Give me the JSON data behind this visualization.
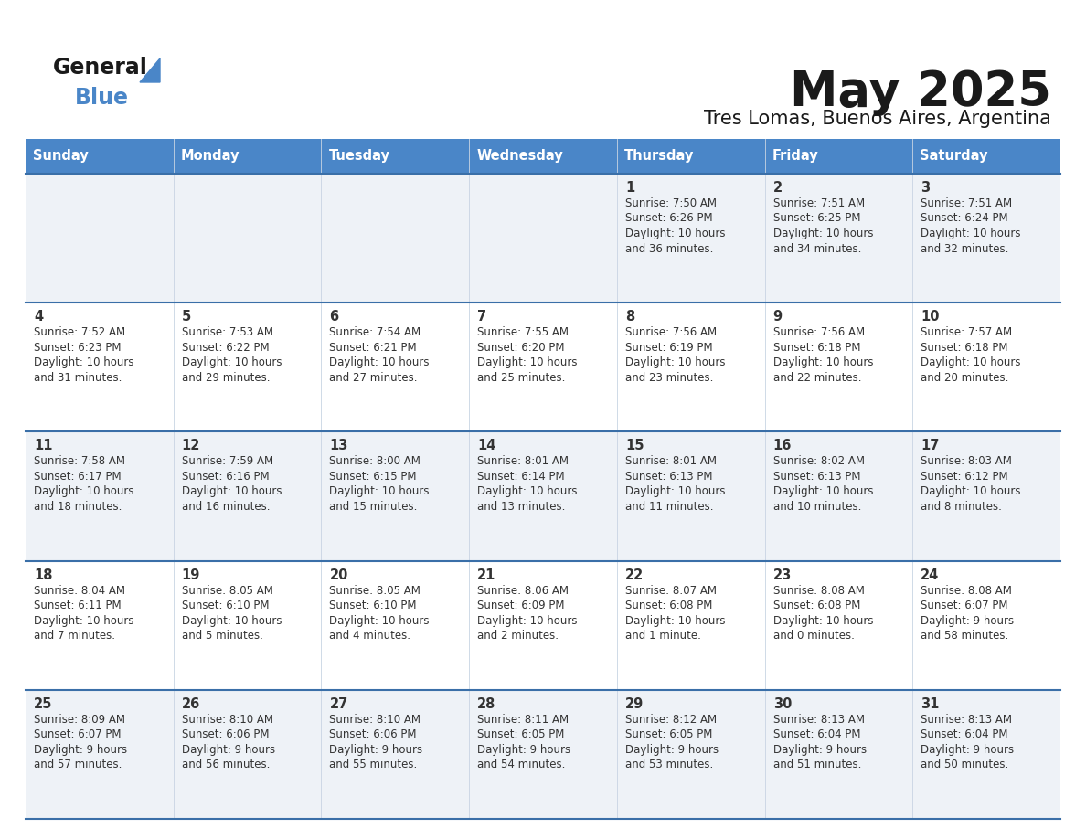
{
  "title": "May 2025",
  "subtitle": "Tres Lomas, Buenos Aires, Argentina",
  "header_bg": "#4a86c8",
  "header_text": "#ffffff",
  "row_bg_light": "#eef2f7",
  "row_bg_white": "#ffffff",
  "separator_color": "#3a6fa8",
  "text_color": "#333333",
  "day_headers": [
    "Sunday",
    "Monday",
    "Tuesday",
    "Wednesday",
    "Thursday",
    "Friday",
    "Saturday"
  ],
  "days": [
    {
      "day": 1,
      "col": 4,
      "row": 0,
      "sunrise": "7:50 AM",
      "sunset": "6:26 PM",
      "daylight_h": "10 hours",
      "daylight_m": "and 36 minutes."
    },
    {
      "day": 2,
      "col": 5,
      "row": 0,
      "sunrise": "7:51 AM",
      "sunset": "6:25 PM",
      "daylight_h": "10 hours",
      "daylight_m": "and 34 minutes."
    },
    {
      "day": 3,
      "col": 6,
      "row": 0,
      "sunrise": "7:51 AM",
      "sunset": "6:24 PM",
      "daylight_h": "10 hours",
      "daylight_m": "and 32 minutes."
    },
    {
      "day": 4,
      "col": 0,
      "row": 1,
      "sunrise": "7:52 AM",
      "sunset": "6:23 PM",
      "daylight_h": "10 hours",
      "daylight_m": "and 31 minutes."
    },
    {
      "day": 5,
      "col": 1,
      "row": 1,
      "sunrise": "7:53 AM",
      "sunset": "6:22 PM",
      "daylight_h": "10 hours",
      "daylight_m": "and 29 minutes."
    },
    {
      "day": 6,
      "col": 2,
      "row": 1,
      "sunrise": "7:54 AM",
      "sunset": "6:21 PM",
      "daylight_h": "10 hours",
      "daylight_m": "and 27 minutes."
    },
    {
      "day": 7,
      "col": 3,
      "row": 1,
      "sunrise": "7:55 AM",
      "sunset": "6:20 PM",
      "daylight_h": "10 hours",
      "daylight_m": "and 25 minutes."
    },
    {
      "day": 8,
      "col": 4,
      "row": 1,
      "sunrise": "7:56 AM",
      "sunset": "6:19 PM",
      "daylight_h": "10 hours",
      "daylight_m": "and 23 minutes."
    },
    {
      "day": 9,
      "col": 5,
      "row": 1,
      "sunrise": "7:56 AM",
      "sunset": "6:18 PM",
      "daylight_h": "10 hours",
      "daylight_m": "and 22 minutes."
    },
    {
      "day": 10,
      "col": 6,
      "row": 1,
      "sunrise": "7:57 AM",
      "sunset": "6:18 PM",
      "daylight_h": "10 hours",
      "daylight_m": "and 20 minutes."
    },
    {
      "day": 11,
      "col": 0,
      "row": 2,
      "sunrise": "7:58 AM",
      "sunset": "6:17 PM",
      "daylight_h": "10 hours",
      "daylight_m": "and 18 minutes."
    },
    {
      "day": 12,
      "col": 1,
      "row": 2,
      "sunrise": "7:59 AM",
      "sunset": "6:16 PM",
      "daylight_h": "10 hours",
      "daylight_m": "and 16 minutes."
    },
    {
      "day": 13,
      "col": 2,
      "row": 2,
      "sunrise": "8:00 AM",
      "sunset": "6:15 PM",
      "daylight_h": "10 hours",
      "daylight_m": "and 15 minutes."
    },
    {
      "day": 14,
      "col": 3,
      "row": 2,
      "sunrise": "8:01 AM",
      "sunset": "6:14 PM",
      "daylight_h": "10 hours",
      "daylight_m": "and 13 minutes."
    },
    {
      "day": 15,
      "col": 4,
      "row": 2,
      "sunrise": "8:01 AM",
      "sunset": "6:13 PM",
      "daylight_h": "10 hours",
      "daylight_m": "and 11 minutes."
    },
    {
      "day": 16,
      "col": 5,
      "row": 2,
      "sunrise": "8:02 AM",
      "sunset": "6:13 PM",
      "daylight_h": "10 hours",
      "daylight_m": "and 10 minutes."
    },
    {
      "day": 17,
      "col": 6,
      "row": 2,
      "sunrise": "8:03 AM",
      "sunset": "6:12 PM",
      "daylight_h": "10 hours",
      "daylight_m": "and 8 minutes."
    },
    {
      "day": 18,
      "col": 0,
      "row": 3,
      "sunrise": "8:04 AM",
      "sunset": "6:11 PM",
      "daylight_h": "10 hours",
      "daylight_m": "and 7 minutes."
    },
    {
      "day": 19,
      "col": 1,
      "row": 3,
      "sunrise": "8:05 AM",
      "sunset": "6:10 PM",
      "daylight_h": "10 hours",
      "daylight_m": "and 5 minutes."
    },
    {
      "day": 20,
      "col": 2,
      "row": 3,
      "sunrise": "8:05 AM",
      "sunset": "6:10 PM",
      "daylight_h": "10 hours",
      "daylight_m": "and 4 minutes."
    },
    {
      "day": 21,
      "col": 3,
      "row": 3,
      "sunrise": "8:06 AM",
      "sunset": "6:09 PM",
      "daylight_h": "10 hours",
      "daylight_m": "and 2 minutes."
    },
    {
      "day": 22,
      "col": 4,
      "row": 3,
      "sunrise": "8:07 AM",
      "sunset": "6:08 PM",
      "daylight_h": "10 hours",
      "daylight_m": "and 1 minute."
    },
    {
      "day": 23,
      "col": 5,
      "row": 3,
      "sunrise": "8:08 AM",
      "sunset": "6:08 PM",
      "daylight_h": "10 hours",
      "daylight_m": "and 0 minutes."
    },
    {
      "day": 24,
      "col": 6,
      "row": 3,
      "sunrise": "8:08 AM",
      "sunset": "6:07 PM",
      "daylight_h": "9 hours",
      "daylight_m": "and 58 minutes."
    },
    {
      "day": 25,
      "col": 0,
      "row": 4,
      "sunrise": "8:09 AM",
      "sunset": "6:07 PM",
      "daylight_h": "9 hours",
      "daylight_m": "and 57 minutes."
    },
    {
      "day": 26,
      "col": 1,
      "row": 4,
      "sunrise": "8:10 AM",
      "sunset": "6:06 PM",
      "daylight_h": "9 hours",
      "daylight_m": "and 56 minutes."
    },
    {
      "day": 27,
      "col": 2,
      "row": 4,
      "sunrise": "8:10 AM",
      "sunset": "6:06 PM",
      "daylight_h": "9 hours",
      "daylight_m": "and 55 minutes."
    },
    {
      "day": 28,
      "col": 3,
      "row": 4,
      "sunrise": "8:11 AM",
      "sunset": "6:05 PM",
      "daylight_h": "9 hours",
      "daylight_m": "and 54 minutes."
    },
    {
      "day": 29,
      "col": 4,
      "row": 4,
      "sunrise": "8:12 AM",
      "sunset": "6:05 PM",
      "daylight_h": "9 hours",
      "daylight_m": "and 53 minutes."
    },
    {
      "day": 30,
      "col": 5,
      "row": 4,
      "sunrise": "8:13 AM",
      "sunset": "6:04 PM",
      "daylight_h": "9 hours",
      "daylight_m": "and 51 minutes."
    },
    {
      "day": 31,
      "col": 6,
      "row": 4,
      "sunrise": "8:13 AM",
      "sunset": "6:04 PM",
      "daylight_h": "9 hours",
      "daylight_m": "and 50 minutes."
    }
  ]
}
